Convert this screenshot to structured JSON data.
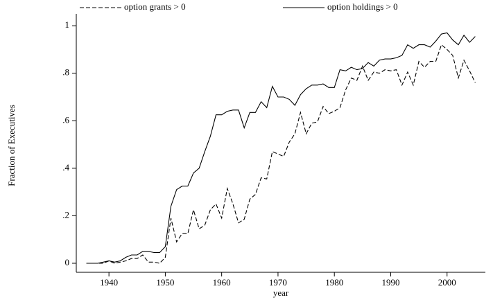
{
  "chart_data": {
    "type": "line",
    "x": [
      1936,
      1937,
      1938,
      1939,
      1940,
      1941,
      1942,
      1943,
      1944,
      1945,
      1946,
      1947,
      1948,
      1949,
      1950,
      1951,
      1952,
      1953,
      1954,
      1955,
      1956,
      1957,
      1958,
      1959,
      1960,
      1961,
      1962,
      1963,
      1964,
      1965,
      1966,
      1967,
      1968,
      1969,
      1970,
      1971,
      1972,
      1973,
      1974,
      1975,
      1976,
      1977,
      1978,
      1979,
      1980,
      1981,
      1982,
      1983,
      1984,
      1985,
      1986,
      1987,
      1988,
      1989,
      1990,
      1991,
      1992,
      1993,
      1994,
      1995,
      1996,
      1997,
      1998,
      1999,
      2000,
      2001,
      2002,
      2003,
      2004,
      2005
    ],
    "series": [
      {
        "name": "option grants > 0",
        "color": "#000000",
        "dash": true,
        "values": [
          0,
          0,
          0,
          0,
          0.01,
          0,
          0.005,
          0.01,
          0.02,
          0.02,
          0.035,
          0.005,
          0.005,
          0,
          0.025,
          0.19,
          0.09,
          0.125,
          0.125,
          0.225,
          0.145,
          0.16,
          0.225,
          0.25,
          0.19,
          0.315,
          0.25,
          0.17,
          0.185,
          0.27,
          0.29,
          0.36,
          0.355,
          0.47,
          0.46,
          0.45,
          0.51,
          0.545,
          0.635,
          0.545,
          0.59,
          0.595,
          0.66,
          0.63,
          0.64,
          0.655,
          0.73,
          0.78,
          0.77,
          0.83,
          0.77,
          0.805,
          0.8,
          0.815,
          0.81,
          0.815,
          0.75,
          0.805,
          0.75,
          0.85,
          0.825,
          0.85,
          0.85,
          0.92,
          0.9,
          0.875,
          0.78,
          0.855,
          0.81,
          0.76
        ]
      },
      {
        "name": "option holdings > 0",
        "color": "#000000",
        "dash": false,
        "values": [
          0,
          0,
          0,
          0.005,
          0.01,
          0.005,
          0.01,
          0.025,
          0.035,
          0.035,
          0.05,
          0.05,
          0.045,
          0.045,
          0.07,
          0.24,
          0.31,
          0.325,
          0.325,
          0.38,
          0.4,
          0.47,
          0.535,
          0.625,
          0.625,
          0.64,
          0.645,
          0.645,
          0.57,
          0.635,
          0.635,
          0.68,
          0.655,
          0.745,
          0.7,
          0.7,
          0.69,
          0.665,
          0.71,
          0.735,
          0.75,
          0.75,
          0.755,
          0.74,
          0.74,
          0.815,
          0.81,
          0.825,
          0.815,
          0.82,
          0.845,
          0.83,
          0.855,
          0.86,
          0.86,
          0.865,
          0.875,
          0.92,
          0.905,
          0.92,
          0.92,
          0.91,
          0.935,
          0.965,
          0.97,
          0.94,
          0.92,
          0.96,
          0.93,
          0.955
        ]
      }
    ],
    "xlabel": "year",
    "ylabel": "Fraction of Executives",
    "xlim": [
      1934.2,
      2006.8
    ],
    "ylim": [
      -0.038,
      1.05
    ],
    "xticks": [
      1940,
      1950,
      1960,
      1970,
      1980,
      1990,
      2000
    ],
    "yticks": [
      0,
      {
        "value": 0.2,
        "label": ".2"
      },
      {
        "value": 0.4,
        "label": ".4"
      },
      {
        "value": 0.6,
        "label": ".6"
      },
      {
        "value": 0.8,
        "label": ".8"
      },
      1
    ]
  }
}
